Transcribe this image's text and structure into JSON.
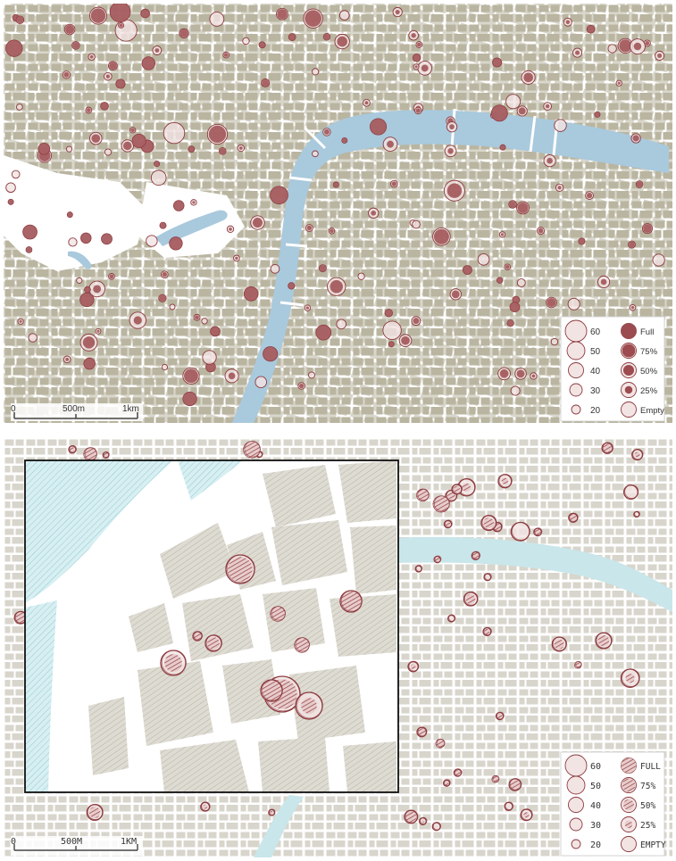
{
  "panels": [
    {
      "id": "standard-map",
      "scale_bar": {
        "labels": [
          "0",
          "500m",
          "1km"
        ]
      },
      "legend": {
        "size_labels": [
          "60",
          "50",
          "40",
          "30",
          "20"
        ],
        "fill_labels": [
          "Full",
          "75%",
          "50%",
          "25%",
          "Empty"
        ]
      }
    },
    {
      "id": "sketchy-map",
      "scale_bar": {
        "labels": [
          "0",
          "500M",
          "1KM"
        ]
      },
      "legend": {
        "size_labels": [
          "60",
          "50",
          "40",
          "30",
          "20"
        ],
        "fill_labels": [
          "FULL",
          "75%",
          "50%",
          "25%",
          "EMPTY"
        ]
      }
    }
  ],
  "colors": {
    "blocks": "#b9b5a0",
    "blocks_sketch": "#d8d5cc",
    "river": "#a9c9dd",
    "river_sketch": "#c9e6ea",
    "station_stroke": "#8c3a3e",
    "station_fill": "#9c4c50",
    "station_empty": "#f3e4e4"
  }
}
